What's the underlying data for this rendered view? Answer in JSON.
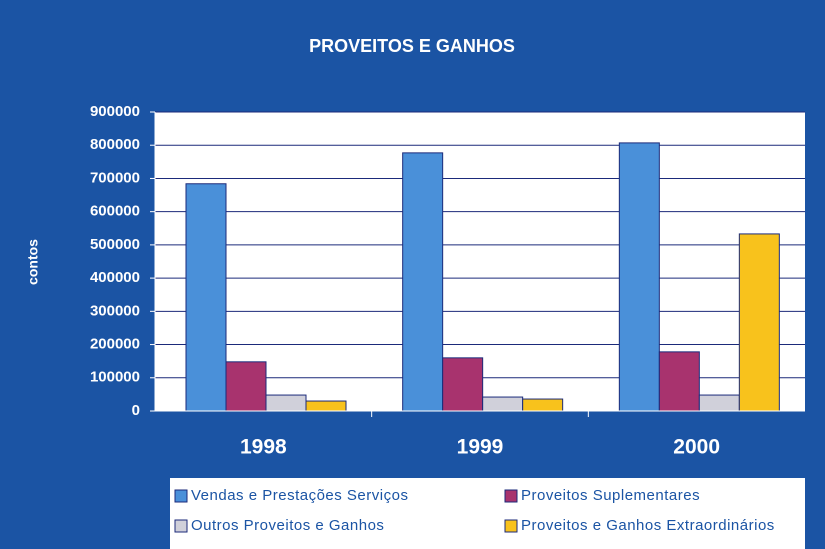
{
  "chart_data": {
    "type": "bar",
    "title": "PROVEITOS E GANHOS",
    "y_label": "contos",
    "categories": [
      "1998",
      "1999",
      "2000"
    ],
    "series": [
      {
        "name": "Vendas e Prestações Serviços",
        "color": "#4a90d9",
        "values": [
          684000,
          777000,
          807000
        ]
      },
      {
        "name": "Proveitos Suplementares",
        "color": "#a8336e",
        "values": [
          148000,
          160000,
          178000
        ]
      },
      {
        "name": "Outros Proveitos e Ganhos",
        "color": "#d0d0da",
        "values": [
          48000,
          42000,
          48000
        ]
      },
      {
        "name": "Proveitos e Ganhos Extraordinários",
        "color": "#f8c21c",
        "values": [
          30000,
          36000,
          533000
        ]
      }
    ],
    "ylim": [
      0,
      900000
    ],
    "yticks": [
      0,
      100000,
      200000,
      300000,
      400000,
      500000,
      600000,
      700000,
      800000,
      900000
    ],
    "grid": true,
    "legend": "bottom"
  }
}
